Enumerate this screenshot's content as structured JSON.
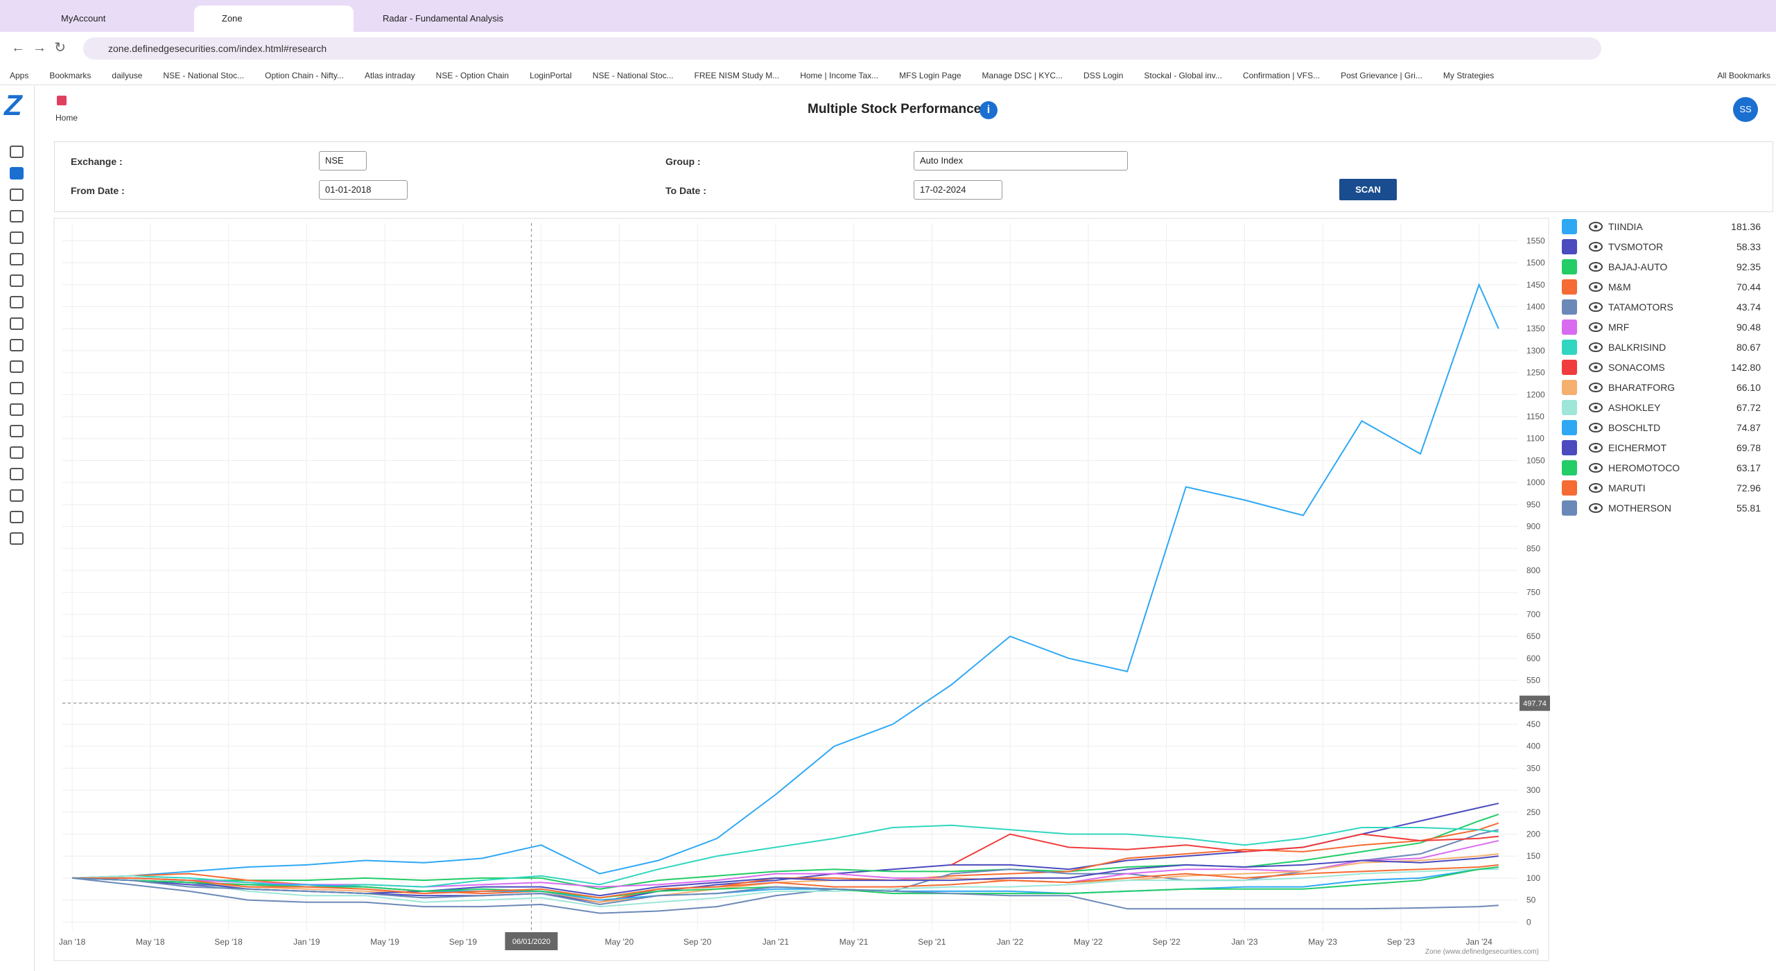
{
  "browser": {
    "tabs": [
      "MyAccount",
      "Zone",
      "Radar - Fundamental Analysis"
    ],
    "url": "zone.definedgesecurities.com/index.html#research",
    "bookmarks": [
      "Apps",
      "Bookmarks",
      "dailyuse",
      "NSE - National Stoc...",
      "Option Chain - Nifty...",
      "Atlas intraday",
      "NSE - Option Chain",
      "LoginPortal",
      "NSE - National Stoc...",
      "FREE NISM Study M...",
      "Home | Income Tax...",
      "MFS Login Page",
      "Manage DSC | KYC...",
      "DSS Login",
      "Stockal - Global inv...",
      "Confirmation | VFS...",
      "Post Grievance | Gri...",
      "My Strategies"
    ],
    "all_bookmarks": "All Bookmarks"
  },
  "app": {
    "logo": "Z",
    "home": "Home",
    "title": "Multiple Stock Performance",
    "avatar": "SS",
    "form": {
      "exchange_label": "Exchange :",
      "exchange": "NSE",
      "group_label": "Group :",
      "group": "Auto Index",
      "from_label": "From Date :",
      "from": "01-01-2018",
      "to_label": "To Date :",
      "to": "17-02-2024",
      "scan": "SCAN"
    },
    "credit": "Zone (www.definedgesecurities.com)"
  },
  "chart_data": {
    "type": "line",
    "x": [
      0,
      3,
      6,
      9,
      12,
      15,
      18,
      21,
      24,
      27,
      30,
      33,
      36,
      39,
      42,
      45,
      48,
      51,
      54,
      57,
      60,
      63,
      66,
      69,
      72,
      73
    ],
    "xlim": [
      -0.5,
      74
    ],
    "ylim": [
      -20,
      1590
    ],
    "xticks": [
      {
        "value": 0,
        "label": "Jan '18"
      },
      {
        "value": 4,
        "label": "May '18"
      },
      {
        "value": 8,
        "label": "Sep '18"
      },
      {
        "value": 12,
        "label": "Jan '19"
      },
      {
        "value": 16,
        "label": "May '19"
      },
      {
        "value": 20,
        "label": "Sep '19"
      },
      {
        "value": 24,
        "label": "Jan '20"
      },
      {
        "value": 28,
        "label": "May '20"
      },
      {
        "value": 32,
        "label": "Sep '20"
      },
      {
        "value": 36,
        "label": "Jan '21"
      },
      {
        "value": 40,
        "label": "May '21"
      },
      {
        "value": 44,
        "label": "Sep '21"
      },
      {
        "value": 48,
        "label": "Jan '22"
      },
      {
        "value": 52,
        "label": "May '22"
      },
      {
        "value": 56,
        "label": "Sep '22"
      },
      {
        "value": 60,
        "label": "Jan '23"
      },
      {
        "value": 64,
        "label": "May '23"
      },
      {
        "value": 68,
        "label": "Sep '23"
      },
      {
        "value": 72,
        "label": "Jan '24"
      }
    ],
    "yticks": [
      0,
      50,
      100,
      150,
      200,
      250,
      300,
      350,
      400,
      450,
      500,
      550,
      600,
      650,
      700,
      750,
      800,
      850,
      900,
      950,
      1000,
      1050,
      1100,
      1150,
      1200,
      1250,
      1300,
      1350,
      1400,
      1450,
      1500,
      1550
    ],
    "grid": true,
    "crosshair": {
      "x": 23.5,
      "x_label": "06/01/2020",
      "y": 497.74
    },
    "series": [
      {
        "name": "TIINDIA",
        "stat": "181.36",
        "color": "#2ea8f5",
        "values": [
          100,
          105,
          115,
          125,
          130,
          140,
          135,
          145,
          175,
          110,
          140,
          190,
          290,
          400,
          450,
          540,
          650,
          600,
          570,
          990,
          960,
          925,
          1140,
          1065,
          1450,
          1350
        ]
      },
      {
        "name": "TVSMOTOR",
        "stat": "58.33",
        "color": "#4b4bbf",
        "values": [
          100,
          95,
          85,
          75,
          70,
          65,
          60,
          60,
          65,
          45,
          70,
          85,
          95,
          110,
          120,
          130,
          130,
          120,
          140,
          150,
          160,
          170,
          200,
          230,
          260,
          270
        ]
      },
      {
        "name": "BAJAJ-AUTO",
        "stat": "92.35",
        "color": "#22cc66",
        "values": [
          100,
          100,
          95,
          95,
          95,
          100,
          95,
          100,
          100,
          75,
          95,
          105,
          115,
          120,
          115,
          115,
          120,
          115,
          125,
          130,
          125,
          140,
          160,
          180,
          230,
          245
        ]
      },
      {
        "name": "M&M",
        "stat": "70.44",
        "color": "#f56b33",
        "values": [
          100,
          105,
          110,
          95,
          85,
          80,
          70,
          65,
          70,
          45,
          75,
          80,
          100,
          100,
          95,
          105,
          110,
          115,
          145,
          155,
          165,
          160,
          175,
          185,
          210,
          225
        ]
      },
      {
        "name": "TATAMOTORS",
        "stat": "43.74",
        "color": "#6b89b8",
        "values": [
          100,
          85,
          70,
          50,
          45,
          45,
          35,
          35,
          40,
          20,
          25,
          35,
          60,
          75,
          70,
          110,
          120,
          110,
          110,
          95,
          95,
          115,
          140,
          155,
          200,
          210
        ]
      },
      {
        "name": "MRF",
        "stat": "90.48",
        "color": "#d96bf0",
        "values": [
          100,
          100,
          95,
          90,
          85,
          85,
          80,
          85,
          90,
          80,
          85,
          95,
          110,
          110,
          100,
          100,
          95,
          90,
          110,
          120,
          120,
          115,
          140,
          145,
          175,
          185
        ]
      },
      {
        "name": "BALKRISIND",
        "stat": "80.67",
        "color": "#30d6c0",
        "values": [
          100,
          105,
          100,
          90,
          80,
          85,
          80,
          95,
          105,
          85,
          120,
          150,
          170,
          190,
          215,
          220,
          210,
          200,
          200,
          190,
          175,
          190,
          215,
          215,
          210,
          205
        ]
      },
      {
        "name": "SONACOMS",
        "stat": "142.80",
        "color": "#f03c3c",
        "values": [
          null,
          null,
          null,
          null,
          null,
          null,
          null,
          null,
          null,
          null,
          null,
          null,
          null,
          null,
          null,
          130,
          200,
          170,
          165,
          175,
          160,
          170,
          200,
          185,
          190,
          195
        ]
      },
      {
        "name": "BHARATFORG",
        "stat": "66.10",
        "color": "#f5b070",
        "values": [
          100,
          95,
          90,
          80,
          75,
          70,
          65,
          70,
          70,
          45,
          60,
          75,
          90,
          95,
          95,
          100,
          95,
          90,
          95,
          105,
          110,
          115,
          135,
          140,
          150,
          155
        ]
      },
      {
        "name": "ASHOKLEY",
        "stat": "67.72",
        "color": "#9ee6d8",
        "values": [
          100,
          105,
          90,
          70,
          60,
          60,
          45,
          50,
          55,
          35,
          45,
          55,
          70,
          70,
          75,
          80,
          80,
          85,
          95,
          95,
          95,
          100,
          110,
          115,
          120,
          120
        ]
      },
      {
        "name": "BOSCHLTD",
        "stat": "74.87",
        "color": "#2ea8f5",
        "values": [
          100,
          95,
          90,
          85,
          85,
          80,
          70,
          70,
          70,
          50,
          60,
          65,
          75,
          75,
          70,
          70,
          70,
          65,
          70,
          75,
          80,
          80,
          95,
          100,
          120,
          125
        ]
      },
      {
        "name": "EICHERMOT",
        "stat": "69.78",
        "color": "#4b4bbf",
        "values": [
          100,
          95,
          90,
          75,
          70,
          65,
          70,
          80,
          80,
          60,
          80,
          90,
          100,
          95,
          95,
          95,
          100,
          100,
          120,
          130,
          125,
          130,
          140,
          135,
          145,
          150
        ]
      },
      {
        "name": "HEROMOTOCO",
        "stat": "63.17",
        "color": "#22cc66",
        "values": [
          100,
          95,
          90,
          85,
          80,
          80,
          70,
          75,
          70,
          55,
          70,
          75,
          80,
          75,
          65,
          65,
          65,
          65,
          70,
          75,
          75,
          75,
          85,
          95,
          120,
          125
        ]
      },
      {
        "name": "MARUTI",
        "stat": "72.96",
        "color": "#f56b33",
        "values": [
          100,
          100,
          95,
          80,
          80,
          75,
          65,
          70,
          75,
          55,
          75,
          80,
          90,
          80,
          80,
          85,
          95,
          90,
          100,
          110,
          100,
          110,
          115,
          120,
          125,
          130
        ]
      },
      {
        "name": "MOTHERSON",
        "stat": "55.81",
        "color": "#6b89b8",
        "values": [
          100,
          95,
          80,
          75,
          70,
          65,
          55,
          60,
          65,
          40,
          60,
          65,
          80,
          75,
          70,
          65,
          60,
          60,
          30,
          30,
          30,
          30,
          30,
          32,
          35,
          38
        ]
      }
    ]
  }
}
